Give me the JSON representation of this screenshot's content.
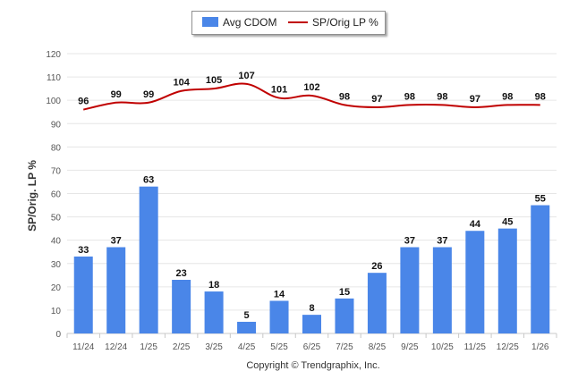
{
  "legend": {
    "bar_label": "Avg CDOM",
    "line_label": "SP/Orig LP %"
  },
  "ylabel": "SP/Orig. LP %",
  "copyright": "Copyright © Trendgraphix, Inc.",
  "colors": {
    "bar": "#4a86e8",
    "line": "#c00000",
    "grid": "#e6e6e6",
    "axis_text": "#555555"
  },
  "chart_data": {
    "type": "bar",
    "categories": [
      "11/24",
      "12/24",
      "1/25",
      "2/25",
      "3/25",
      "4/25",
      "5/25",
      "6/25",
      "7/25",
      "8/25",
      "9/25",
      "10/25",
      "11/25",
      "12/25",
      "1/26"
    ],
    "yticks": [
      0,
      10,
      20,
      30,
      40,
      50,
      60,
      70,
      80,
      90,
      100,
      110,
      120
    ],
    "ylim": [
      0,
      120
    ],
    "grid": true,
    "legend_position": "top-center",
    "series": [
      {
        "name": "Avg CDOM",
        "type": "bar",
        "values": [
          33,
          37,
          63,
          23,
          18,
          5,
          14,
          8,
          15,
          26,
          37,
          37,
          44,
          45,
          55
        ]
      },
      {
        "name": "SP/Orig LP %",
        "type": "line",
        "values": [
          96,
          99,
          99,
          104,
          105,
          107,
          101,
          102,
          98,
          97,
          98,
          98,
          97,
          98,
          98
        ]
      }
    ],
    "ylabel": "SP/Orig. LP %"
  }
}
